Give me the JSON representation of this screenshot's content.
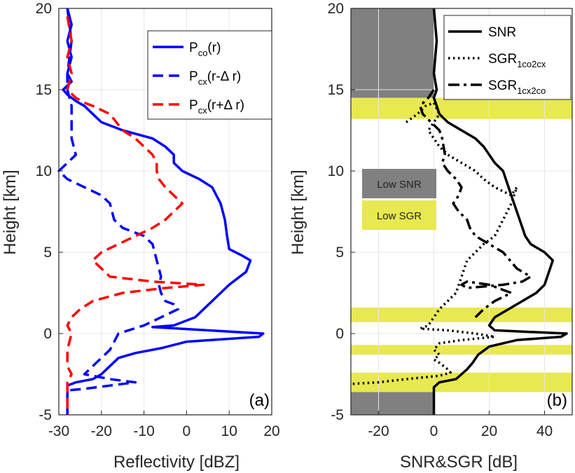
{
  "colors": {
    "blue": "#0000ff",
    "red": "#ff0000",
    "black": "#000000",
    "low_snr": "#808080",
    "low_sgr": "#e8e850",
    "grid": "#e6e6e6",
    "axis": "#262626"
  },
  "chart_data": [
    {
      "type": "line",
      "panel_label": "(a)",
      "xlabel": "Reflectivity [dBZ]",
      "ylabel": "Height [km]",
      "xlim": [
        -30,
        20
      ],
      "ylim": [
        -5,
        20
      ],
      "xticks": [
        -30,
        -20,
        -10,
        0,
        10,
        20
      ],
      "yticks": [
        -5,
        0,
        5,
        10,
        15,
        20
      ],
      "grid": true,
      "legend_position": "top-right",
      "series": [
        {
          "name_main": "P",
          "name_sub": "co",
          "name_suffix": "(r)",
          "color": "blue",
          "style": "solid",
          "points": [
            [
              -28,
              20
            ],
            [
              -27,
              19
            ],
            [
              -28,
              18
            ],
            [
              -27,
              17
            ],
            [
              -28,
              16
            ],
            [
              -27,
              15.5
            ],
            [
              -29,
              15
            ],
            [
              -28,
              14.7
            ],
            [
              -26,
              14.3
            ],
            [
              -24,
              14
            ],
            [
              -22,
              13.5
            ],
            [
              -20,
              13
            ],
            [
              -15,
              12.5
            ],
            [
              -8,
              12
            ],
            [
              -5,
              11.5
            ],
            [
              -3,
              11
            ],
            [
              -3,
              10.5
            ],
            [
              -1,
              10
            ],
            [
              3,
              9.5
            ],
            [
              6,
              9
            ],
            [
              8,
              8
            ],
            [
              9,
              7
            ],
            [
              9.5,
              6
            ],
            [
              10,
              5.2
            ],
            [
              13,
              4.8
            ],
            [
              15,
              4.5
            ],
            [
              14,
              3.8
            ],
            [
              10,
              3
            ],
            [
              6,
              2
            ],
            [
              2,
              1
            ],
            [
              -3,
              0.5
            ],
            [
              -8,
              0.4
            ],
            [
              5,
              0.2
            ],
            [
              18,
              0
            ],
            [
              17,
              -0.2
            ],
            [
              0,
              -0.5
            ],
            [
              -6,
              -0.9
            ],
            [
              -12,
              -1.2
            ],
            [
              -16,
              -1.5
            ],
            [
              -18,
              -2
            ],
            [
              -20,
              -2.5
            ],
            [
              -22,
              -2.8
            ],
            [
              -26,
              -3
            ],
            [
              -28,
              -3.2
            ],
            [
              -28,
              -5
            ]
          ]
        },
        {
          "name_main": "P",
          "name_sub": "cx",
          "name_suffix": "(r-Δ r)",
          "color": "blue",
          "style": "dashed",
          "points": [
            [
              -28,
              20
            ],
            [
              -27,
              18
            ],
            [
              -28,
              16
            ],
            [
              -28,
              15
            ],
            [
              -27,
              14
            ],
            [
              -27,
              13
            ],
            [
              -27,
              12
            ],
            [
              -26,
              11
            ],
            [
              -28,
              10.5
            ],
            [
              -30,
              10
            ],
            [
              -28,
              9.5
            ],
            [
              -24,
              9
            ],
            [
              -20,
              8.5
            ],
            [
              -18,
              8
            ],
            [
              -17,
              7
            ],
            [
              -15,
              6.5
            ],
            [
              -10,
              6
            ],
            [
              -8,
              5.5
            ],
            [
              -7,
              4.5
            ],
            [
              -6,
              3.5
            ],
            [
              -6.5,
              3
            ],
            [
              -6,
              2.5
            ],
            [
              -5,
              2
            ],
            [
              -3,
              1.8
            ],
            [
              -2,
              1.5
            ],
            [
              -6,
              1
            ],
            [
              -10,
              0.5
            ],
            [
              -16,
              0
            ],
            [
              -18,
              -1
            ],
            [
              -20,
              -1.5
            ],
            [
              -22,
              -2
            ],
            [
              -24,
              -2.5
            ],
            [
              -18,
              -2.8
            ],
            [
              -12,
              -3
            ],
            [
              -18,
              -3.2
            ],
            [
              -24,
              -3.4
            ],
            [
              -28,
              -3.5
            ],
            [
              -28,
              -5
            ]
          ]
        },
        {
          "name_main": "P",
          "name_sub": "cx",
          "name_suffix": "(r+Δ r)",
          "color": "red",
          "style": "dashed",
          "points": [
            [
              -28,
              19.5
            ],
            [
              -27,
              18
            ],
            [
              -28,
              17
            ],
            [
              -27,
              16
            ],
            [
              -28,
              15
            ],
            [
              -26,
              14.5
            ],
            [
              -24,
              14.2
            ],
            [
              -22,
              14
            ],
            [
              -18,
              13.5
            ],
            [
              -15,
              12.5
            ],
            [
              -12,
              12
            ],
            [
              -10,
              11.5
            ],
            [
              -8,
              11
            ],
            [
              -7,
              10.5
            ],
            [
              -7,
              10
            ],
            [
              -6.5,
              9.5
            ],
            [
              -5,
              9
            ],
            [
              -3,
              8.5
            ],
            [
              -1,
              8
            ],
            [
              -3,
              7.5
            ],
            [
              -5,
              7
            ],
            [
              -8,
              6.5
            ],
            [
              -12,
              6
            ],
            [
              -16,
              5.5
            ],
            [
              -20,
              5
            ],
            [
              -22,
              4.5
            ],
            [
              -20,
              4
            ],
            [
              -18,
              3.5
            ],
            [
              -8,
              3.2
            ],
            [
              4,
              3
            ],
            [
              -5,
              2.8
            ],
            [
              -15,
              2.5
            ],
            [
              -22,
              2
            ],
            [
              -25,
              1.5
            ],
            [
              -27,
              1
            ],
            [
              -28,
              0.5
            ],
            [
              -27,
              0
            ],
            [
              -28,
              -1
            ],
            [
              -28,
              -2
            ],
            [
              -27,
              -2.5
            ],
            [
              -28,
              -3
            ],
            [
              -28,
              -4
            ],
            [
              -28,
              -5
            ]
          ]
        }
      ]
    },
    {
      "type": "line",
      "panel_label": "(b)",
      "xlabel": "SNR&SGR [dB]",
      "ylabel": "Height [km]",
      "xlim": [
        -30,
        50
      ],
      "ylim": [
        -5,
        20
      ],
      "xticks": [
        -20,
        0,
        20,
        40
      ],
      "yticks": [
        -5,
        0,
        5,
        10,
        15,
        20
      ],
      "grid": true,
      "legend_position": "top-right",
      "shaded_regions": [
        {
          "label": "Low SNR",
          "color": "low_snr",
          "x_range": [
            -30,
            0
          ],
          "y_range": [
            14.5,
            20
          ]
        },
        {
          "label": "Low SNR",
          "color": "low_snr",
          "x_range": [
            -30,
            0
          ],
          "y_range": [
            -5,
            -3.6
          ]
        },
        {
          "label": "Low SGR",
          "color": "low_sgr",
          "x_range": [
            -30,
            50
          ],
          "y_range": [
            13.2,
            14.5
          ]
        },
        {
          "label": "Low SGR",
          "color": "low_sgr",
          "x_range": [
            -30,
            50
          ],
          "y_range": [
            0.7,
            1.6
          ]
        },
        {
          "label": "Low SGR",
          "color": "low_sgr",
          "x_range": [
            -30,
            50
          ],
          "y_range": [
            -1.3,
            -0.7
          ]
        },
        {
          "label": "Low SGR",
          "color": "low_sgr",
          "x_range": [
            -30,
            50
          ],
          "y_range": [
            -3.6,
            -2.4
          ]
        }
      ],
      "region_labels": [
        {
          "text": "Low SNR",
          "color": "low_snr"
        },
        {
          "text": "Low SGR",
          "color": "low_sgr"
        }
      ],
      "series": [
        {
          "name_main": "SNR",
          "name_sub": "",
          "name_suffix": "",
          "color": "black",
          "style": "solid",
          "points": [
            [
              0,
              20
            ],
            [
              1,
              18
            ],
            [
              0,
              16
            ],
            [
              1,
              15
            ],
            [
              0,
              14.5
            ],
            [
              1,
              14
            ],
            [
              2,
              13.5
            ],
            [
              5,
              13
            ],
            [
              10,
              12.5
            ],
            [
              15,
              12
            ],
            [
              18,
              11.5
            ],
            [
              20,
              11
            ],
            [
              22,
              10.5
            ],
            [
              25,
              10
            ],
            [
              27,
              9
            ],
            [
              29,
              8
            ],
            [
              31,
              7
            ],
            [
              33,
              6
            ],
            [
              35,
              5.5
            ],
            [
              40,
              5
            ],
            [
              43,
              4.5
            ],
            [
              42,
              4
            ],
            [
              40,
              3
            ],
            [
              37,
              2.5
            ],
            [
              32,
              2
            ],
            [
              27,
              1.5
            ],
            [
              22,
              1
            ],
            [
              20,
              0.5
            ],
            [
              22,
              0.2
            ],
            [
              35,
              0.1
            ],
            [
              48,
              0
            ],
            [
              46,
              -0.2
            ],
            [
              30,
              -0.4
            ],
            [
              20,
              -0.8
            ],
            [
              16,
              -1.3
            ],
            [
              14,
              -1.8
            ],
            [
              12,
              -2.2
            ],
            [
              10,
              -2.5
            ],
            [
              8,
              -2.8
            ],
            [
              2,
              -3
            ],
            [
              0,
              -3.3
            ],
            [
              0,
              -5
            ]
          ]
        },
        {
          "name_main": "SGR",
          "name_sub": "1co2cx",
          "name_suffix": "",
          "color": "black",
          "style": "dotted",
          "points": [
            [
              -10,
              13
            ],
            [
              -6,
              13.5
            ],
            [
              -3,
              14
            ],
            [
              0,
              14.2
            ],
            [
              2,
              13.5
            ],
            [
              0,
              13
            ],
            [
              -2,
              12.5
            ],
            [
              0,
              12
            ],
            [
              2,
              11.5
            ],
            [
              5,
              11
            ],
            [
              10,
              10.5
            ],
            [
              15,
              10
            ],
            [
              18,
              9.5
            ],
            [
              22,
              9
            ],
            [
              28,
              8.5
            ],
            [
              30,
              9
            ],
            [
              28,
              8
            ],
            [
              25,
              7
            ],
            [
              22,
              6
            ],
            [
              18,
              5.5
            ],
            [
              15,
              5
            ],
            [
              12,
              4.5
            ],
            [
              10,
              3.5
            ],
            [
              8,
              2.5
            ],
            [
              5,
              2
            ],
            [
              2,
              1.5
            ],
            [
              0,
              1
            ],
            [
              -2,
              0.5
            ],
            [
              -5,
              0.3
            ],
            [
              5,
              0.2
            ],
            [
              15,
              0
            ],
            [
              22,
              -0.2
            ],
            [
              10,
              -0.4
            ],
            [
              2,
              -0.6
            ],
            [
              0,
              -1
            ],
            [
              2,
              -1.3
            ],
            [
              0,
              -1.6
            ],
            [
              2,
              -1.8
            ],
            [
              5,
              -2.2
            ],
            [
              6,
              -2.4
            ],
            [
              2,
              -2.6
            ],
            [
              -10,
              -2.8
            ],
            [
              -20,
              -3
            ],
            [
              -30,
              -3.1
            ]
          ]
        },
        {
          "name_main": "SGR",
          "name_sub": "1cx2co",
          "name_suffix": "",
          "color": "black",
          "style": "dashdot",
          "points": [
            [
              0,
              15
            ],
            [
              -2,
              14.5
            ],
            [
              -5,
              14
            ],
            [
              -4,
              13.5
            ],
            [
              -1,
              13
            ],
            [
              2,
              12.5
            ],
            [
              3,
              12
            ],
            [
              4,
              11
            ],
            [
              3,
              10.5
            ],
            [
              5,
              10
            ],
            [
              8,
              9.5
            ],
            [
              10,
              9
            ],
            [
              9,
              8.5
            ],
            [
              7,
              8
            ],
            [
              9,
              7.5
            ],
            [
              12,
              7
            ],
            [
              13,
              6.5
            ],
            [
              15,
              6
            ],
            [
              20,
              5.5
            ],
            [
              25,
              5
            ],
            [
              30,
              4
            ],
            [
              35,
              3.5
            ],
            [
              32,
              3.2
            ],
            [
              25,
              3
            ],
            [
              12,
              2.8
            ],
            [
              10,
              3
            ],
            [
              12,
              3.2
            ],
            [
              20,
              3
            ],
            [
              28,
              2.5
            ],
            [
              22,
              2
            ],
            [
              18,
              1.5
            ],
            [
              15,
              1
            ]
          ]
        }
      ]
    }
  ]
}
